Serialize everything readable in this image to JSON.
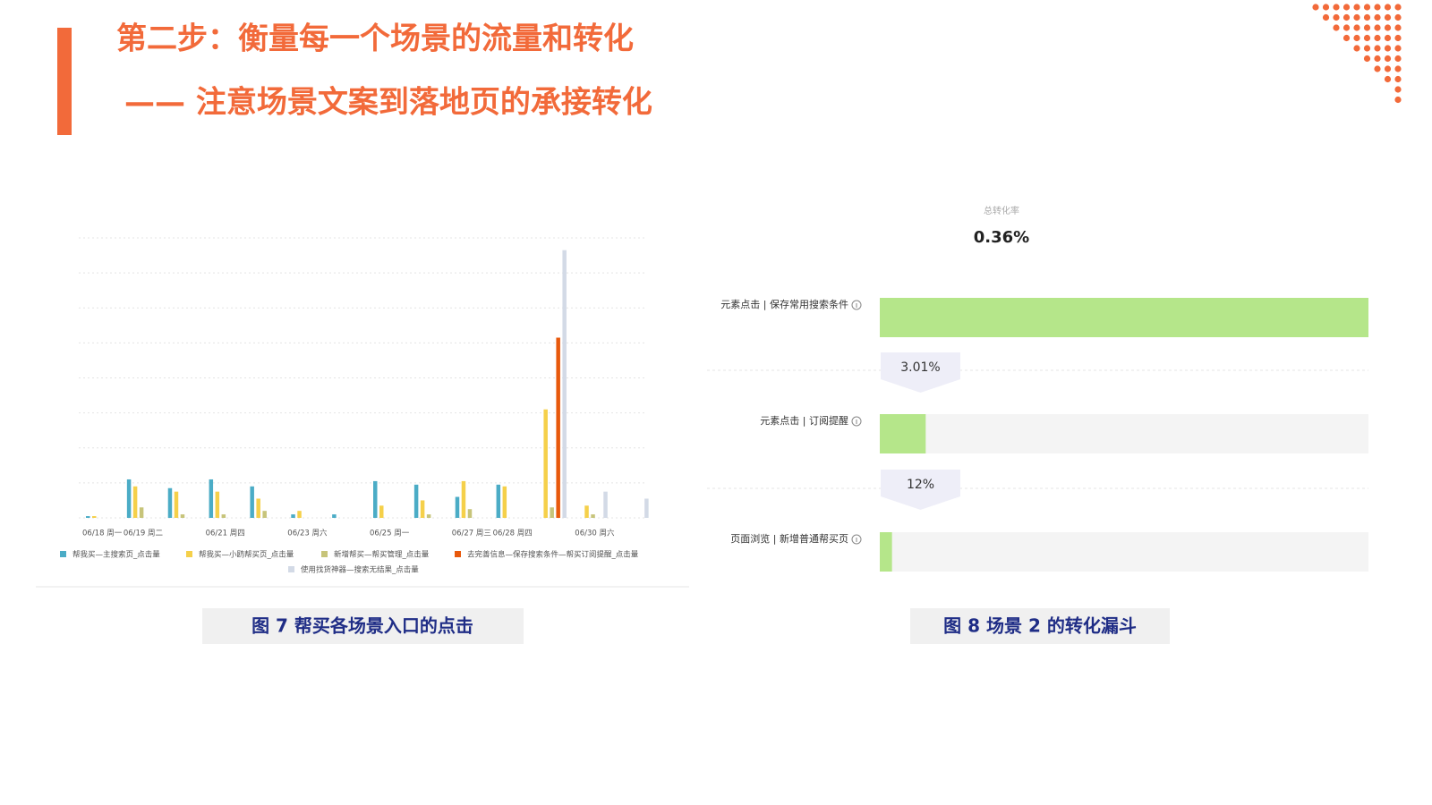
{
  "slide": {
    "title": "第二步：衡量每一个场景的流量和转化",
    "subtitle": "—— 注意场景文案到落地页的承接转化",
    "captions": [
      "图 7  帮买各场景入口的点击",
      "图 8  场景 2 的转化漏斗"
    ]
  },
  "chart_data": [
    {
      "type": "bar",
      "categories": [
        "06/18 周一",
        "06/19 周二",
        null,
        "06/21 周四",
        null,
        "06/23 周六",
        null,
        "06/25 周一",
        null,
        "06/27 周三",
        "06/28 周四",
        null,
        "06/30 周六",
        null
      ],
      "series": [
        {
          "name": "帮我买—主搜索页_点击量",
          "color": "#4bacc6",
          "values": [
            0.05,
            1.1,
            0.85,
            1.1,
            0.9,
            0.1,
            0.1,
            1.05,
            0.95,
            0.6,
            0.95,
            0,
            0,
            0
          ]
        },
        {
          "name": "帮我买—小鸥帮买页_点击量",
          "color": "#f5d04a",
          "values": [
            0.05,
            0.9,
            0.75,
            0.75,
            0.55,
            0.2,
            0,
            0.35,
            0.5,
            1.05,
            0.9,
            3.1,
            0.35,
            0
          ]
        },
        {
          "name": "新增帮买—帮买管理_点击量",
          "color": "#c7c47a",
          "values": [
            0,
            0.3,
            0.1,
            0.1,
            0.2,
            0,
            0,
            0,
            0.1,
            0.25,
            0,
            0.3,
            0.1,
            0
          ]
        },
        {
          "name": "去完善信息—保存搜索条件—帮买订阅提醒_点击量",
          "color": "#e8590c",
          "values": [
            0,
            0,
            0,
            0,
            0,
            0,
            0,
            0,
            0,
            0,
            0,
            5.15,
            0,
            0
          ]
        },
        {
          "name": "使用找货神器—搜索无结果_点击量",
          "color": "#d3dae6",
          "values": [
            0,
            0,
            0,
            0,
            0,
            0,
            0,
            0,
            0,
            0,
            0,
            7.65,
            0.75,
            0.55
          ]
        }
      ],
      "ylim": [
        0,
        8
      ],
      "yticks": [
        0,
        1,
        2,
        3,
        4,
        5,
        6,
        7,
        8
      ],
      "ytick_labels": false,
      "grid": true,
      "legend": "bottom"
    },
    {
      "type": "funnel",
      "total_label": "总转化率",
      "total": 0.36,
      "total_value_label": "0.36%",
      "stages": [
        "元素点击 | 保存常用搜索条件",
        "元素点击 | 订阅提醒",
        "页面浏览 | 新增普通帮买页"
      ],
      "values": [
        100,
        9.4,
        2.5
      ],
      "xlim": [
        0,
        100
      ],
      "rates": [
        3.01,
        12
      ],
      "rate_labels": [
        "3.01%",
        "12%"
      ],
      "color": "#b5e68a",
      "track_color": "#f4f4f4"
    }
  ]
}
